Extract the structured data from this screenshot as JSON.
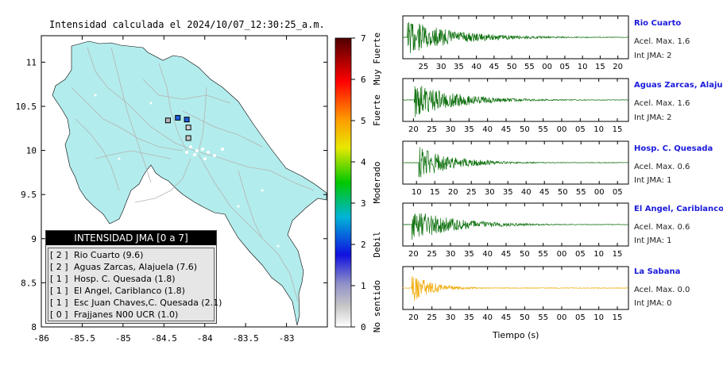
{
  "map": {
    "title": "Intensidad calculada el 2024/10/07_12:30:25_a.m.",
    "x_ticks": [
      "-86",
      "-85.5",
      "-85",
      "-84.5",
      "-84",
      "-83.5",
      "-83"
    ],
    "y_ticks": [
      "11",
      "10.5",
      "10",
      "9.5",
      "9",
      "8.5",
      "8"
    ],
    "colors": {
      "land": "#b3ecec",
      "border": "#000000",
      "roads": "#b4b4b4"
    },
    "stations": [
      {
        "lon": -84.45,
        "lat": 10.34,
        "fill": "#b4b4b4"
      },
      {
        "lon": -84.33,
        "lat": 10.37,
        "fill": "#1e5adc"
      },
      {
        "lon": -84.22,
        "lat": 10.35,
        "fill": "#1e5adc"
      },
      {
        "lon": -84.2,
        "lat": 10.26,
        "fill": "#d0d0d0"
      },
      {
        "lon": -84.2,
        "lat": 10.14,
        "fill": "#c8c8c8"
      }
    ]
  },
  "legend": {
    "title": "INTENSIDAD JMA [0 a 7]",
    "items": [
      {
        "intensity": "[ 2 ]",
        "label": "Rio Cuarto (9.6)"
      },
      {
        "intensity": "[ 2 ]",
        "label": "Aguas Zarcas, Alajuela (7.6)"
      },
      {
        "intensity": "[ 1 ]",
        "label": "Hosp. C. Quesada (1.8)"
      },
      {
        "intensity": "[ 1 ]",
        "label": "El Angel, Cariblanco (1.8)"
      },
      {
        "intensity": "[ 1 ]",
        "label": "Esc Juan Chaves,C. Quesada (2.1)"
      },
      {
        "intensity": "[ 0 ]",
        "label": "Frajjanes N00 UCR (1.0)"
      }
    ]
  },
  "colorbar": {
    "ticks": [
      "0",
      "1",
      "2",
      "3",
      "4",
      "5",
      "6",
      "7"
    ],
    "labels": [
      "No sentido",
      "Debil",
      "Moderado",
      "Fuerte",
      "Muy Fuerte"
    ]
  },
  "waveforms": {
    "xlabel": "Tiempo (s)",
    "panels": [
      {
        "name": "Rio Cuarto",
        "acel": "Acel. Max. 1.6",
        "jma": "Int JMA: 2",
        "color": "#0a6e0a",
        "ticks": [
          "25",
          "30",
          "35",
          "40",
          "45",
          "50",
          "55",
          "00",
          "05",
          "10",
          "15",
          "20"
        ]
      },
      {
        "name": "Aguas Zarcas, Alajuela",
        "acel": "Acel. Max. 1.6",
        "jma": "Int JMA: 2",
        "color": "#0a6e0a",
        "ticks": [
          "20",
          "25",
          "30",
          "35",
          "40",
          "45",
          "50",
          "55",
          "00",
          "05",
          "10",
          "15"
        ]
      },
      {
        "name": "Hosp. C. Quesada",
        "acel": "Acel. Max. 0.6",
        "jma": "Int JMA: 1",
        "color": "#0a6e0a",
        "ticks": [
          "10",
          "15",
          "20",
          "25",
          "30",
          "35",
          "40",
          "45",
          "50",
          "55",
          "00",
          "05"
        ]
      },
      {
        "name": "El Angel, Cariblanco",
        "acel": "Acel. Max. 0.6",
        "jma": "Int JMA: 1",
        "color": "#0a6e0a",
        "ticks": [
          "20",
          "25",
          "30",
          "35",
          "40",
          "45",
          "50",
          "55",
          "00",
          "05",
          "10",
          "15"
        ]
      },
      {
        "name": "La Sabana",
        "acel": "Acel. Max. 0.0",
        "jma": "Int JMA: 0",
        "color": "#f0a800",
        "ticks": [
          "20",
          "25",
          "30",
          "35",
          "40",
          "45",
          "50",
          "55",
          "00",
          "05",
          "10",
          "15"
        ]
      }
    ]
  }
}
